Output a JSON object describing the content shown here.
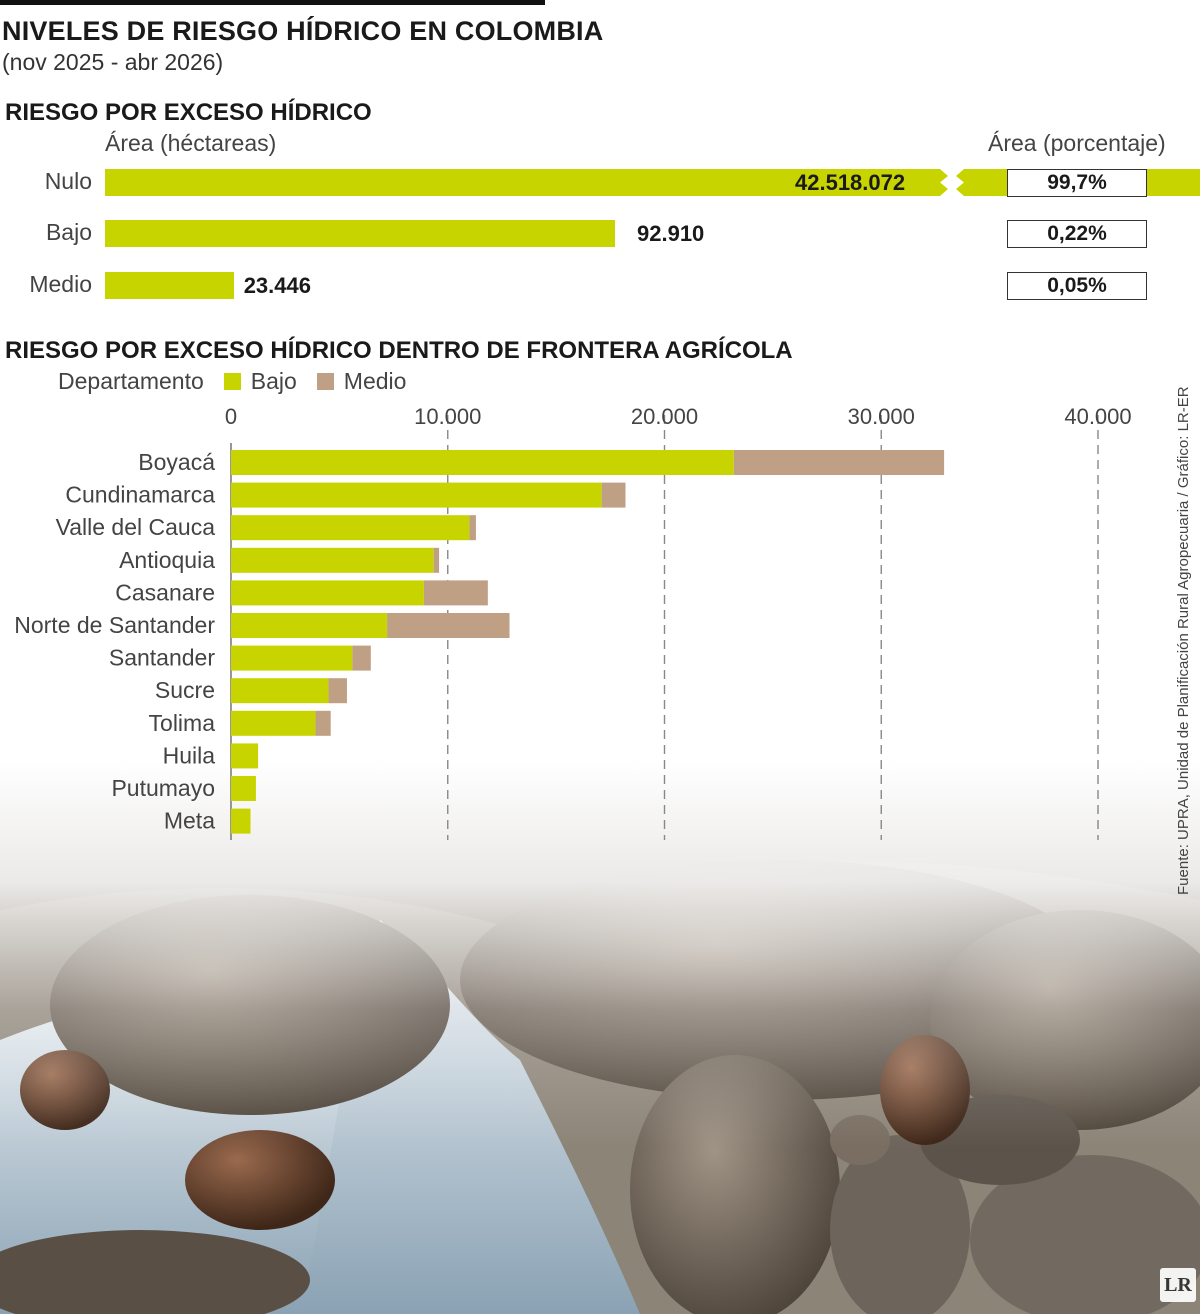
{
  "header": {
    "title": "NIVELES DE RIESGO HÍDRICO EN COLOMBIA",
    "subtitle": "(nov 2025 - abr 2026)"
  },
  "section1": {
    "title": "RIESGO POR EXCESO HÍDRICO",
    "left_header": "Área (héctareas)",
    "right_header": "Área (porcentaje)"
  },
  "section2": {
    "title": "RIESGO POR EXCESO HÍDRICO DENTRO DE  FRONTERA AGRÍCOLA",
    "legend_title": "Departamento",
    "legend_bajo": "Bajo",
    "legend_medio": "Medio"
  },
  "source": "Fuente: UPRA, Unidad de Planificación Rural Agropecuaria / Gráfico: LR-ER",
  "logo": "LR",
  "colors": {
    "bajo": "#c8d400",
    "medio": "#c0a084",
    "grid": "#888888"
  },
  "chart_data": [
    {
      "type": "bar",
      "orientation": "horizontal",
      "axis_break": true,
      "categories": [
        "Nulo",
        "Bajo",
        "Medio"
      ],
      "values": [
        42518072,
        92910,
        23446
      ],
      "value_labels": [
        "42.518.072",
        "92.910",
        "23.446"
      ],
      "percentages": [
        "99,7%",
        "0,22%",
        "0,05%"
      ],
      "xlabel": "Área (héctareas)",
      "pct_label": "Área (porcentaje)"
    },
    {
      "type": "bar",
      "orientation": "horizontal",
      "stacked": true,
      "categories": [
        "Boyacá",
        "Cundinamarca",
        "Valle del Cauca",
        "Antioquia",
        "Casanare",
        "Norte de Santander",
        "Santander",
        "Sucre",
        "Tolima",
        "Huila",
        "Putumayo",
        "Meta"
      ],
      "series": [
        {
          "name": "Bajo",
          "values": [
            23200,
            17100,
            11000,
            9350,
            8900,
            7200,
            5600,
            4500,
            3900,
            1250,
            1150,
            900
          ]
        },
        {
          "name": "Medio",
          "values": [
            9700,
            1100,
            300,
            250,
            2950,
            5650,
            850,
            850,
            700,
            0,
            0,
            0
          ]
        }
      ],
      "xlim": [
        0,
        40000
      ],
      "ticks": [
        0,
        10000,
        20000,
        30000,
        40000
      ],
      "tick_labels": [
        "0",
        "10.000",
        "20.000",
        "30.000",
        "40.000"
      ],
      "grid": true,
      "legend_position": "top-left"
    }
  ]
}
